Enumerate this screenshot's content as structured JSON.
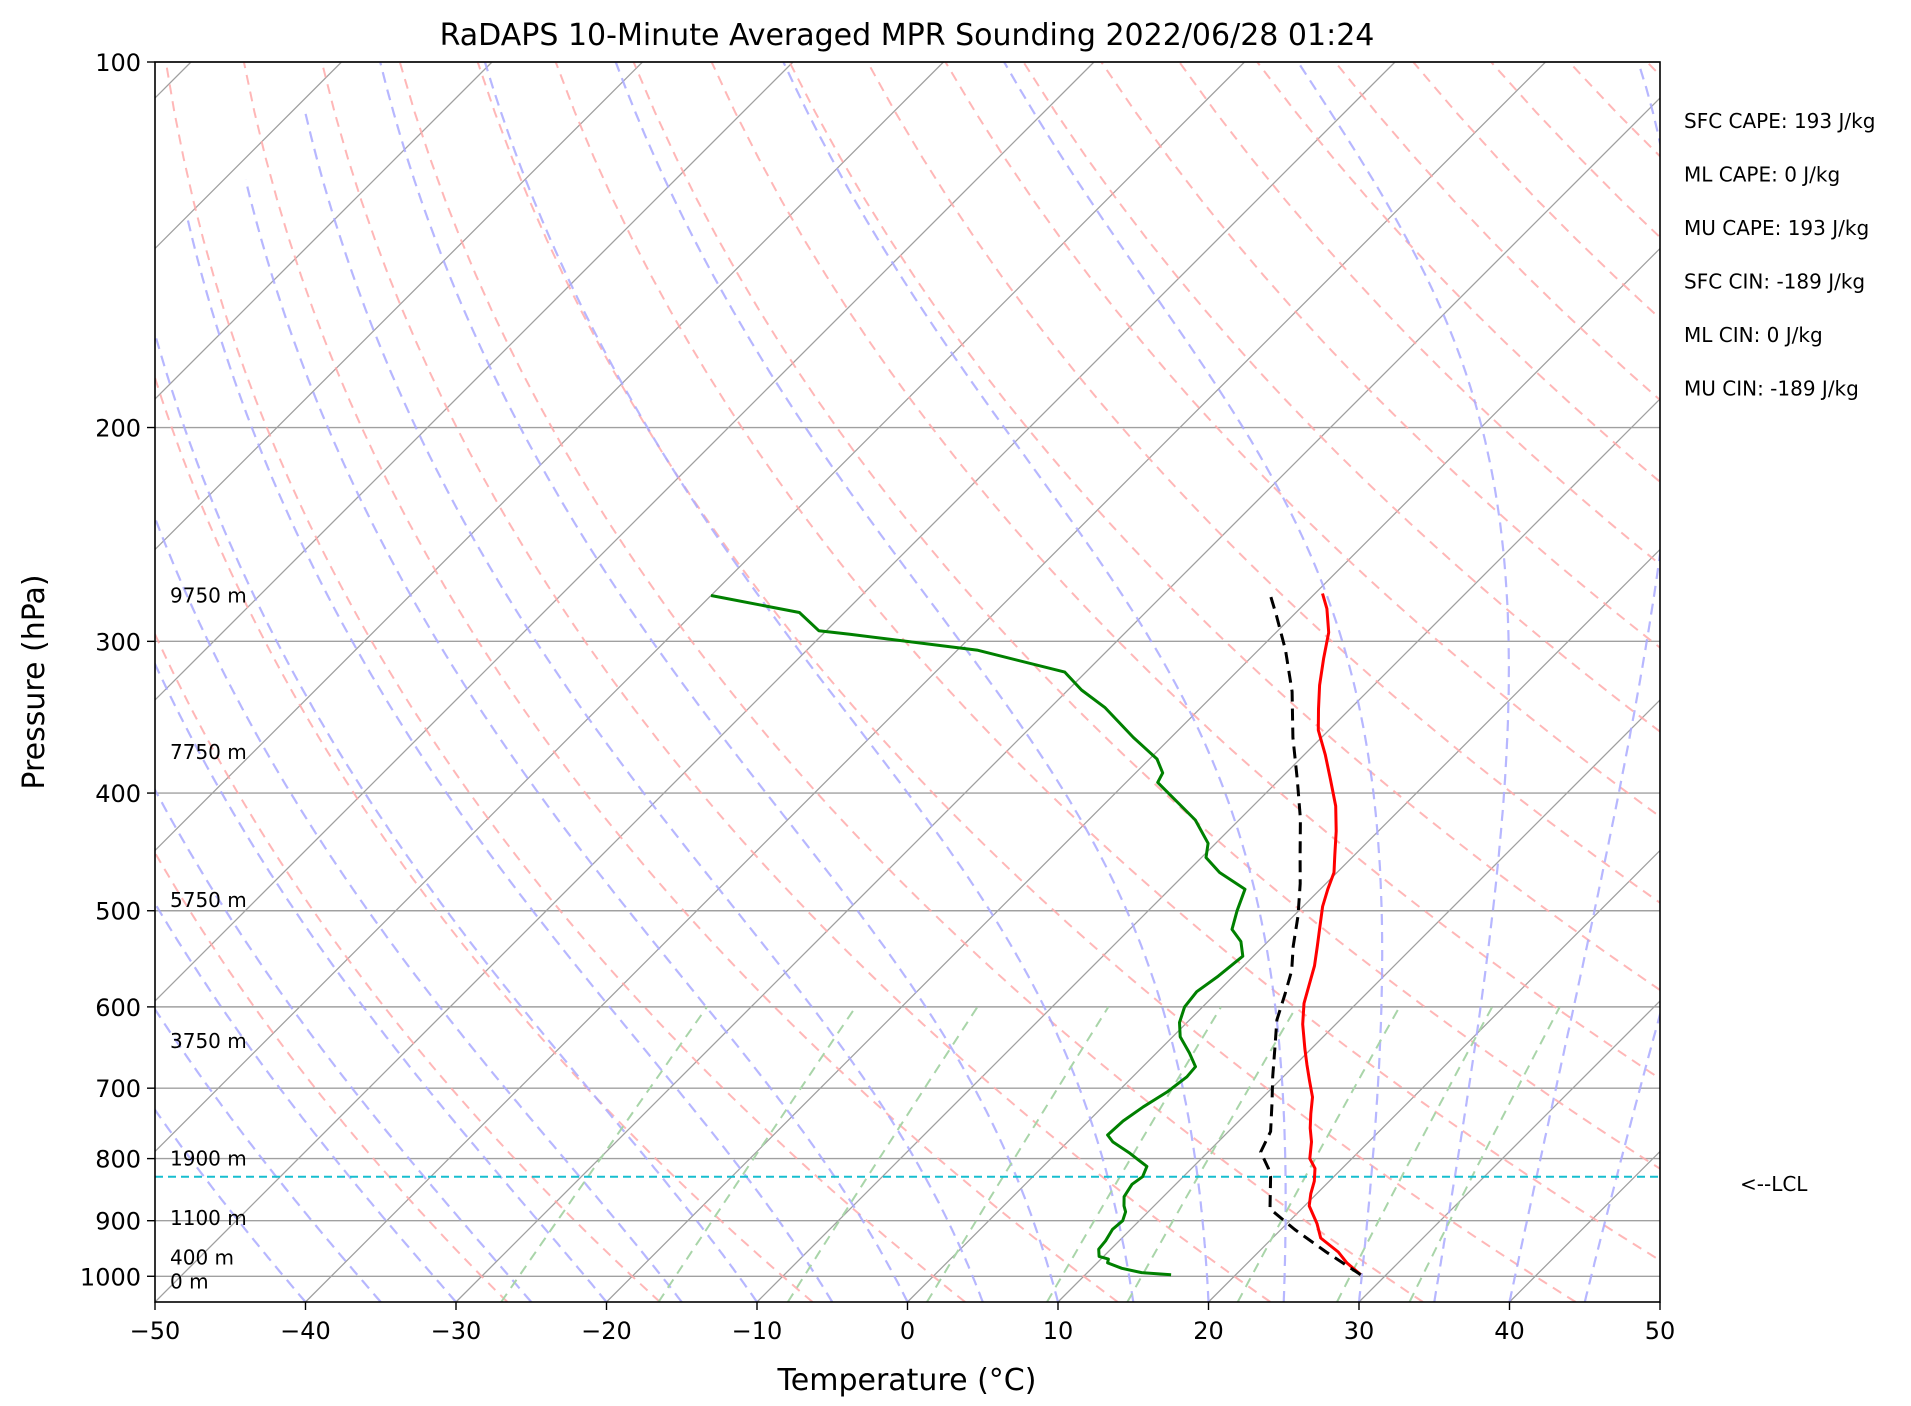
{
  "chart_data": {
    "type": "line",
    "subtype": "skew-T log-p sounding",
    "title": "RaDAPS 10-Minute Averaged MPR Sounding 2022/06/28 01:24",
    "xlabel": "Temperature (°C)",
    "ylabel": "Pressure (hPa)",
    "xlim": [
      -50,
      50
    ],
    "ylim": [
      1050,
      100
    ],
    "yscale": "log",
    "x_ticks": [
      "−50",
      "−40",
      "−30",
      "−20",
      "−10",
      "0",
      "10",
      "20",
      "30",
      "40",
      "50"
    ],
    "y_ticks": [
      "100",
      "200",
      "300",
      "400",
      "500",
      "600",
      "700",
      "800",
      "900",
      "1000"
    ],
    "grid": true,
    "colors": {
      "temperature": "#ff0000",
      "dewpoint": "#008000",
      "parcel": "#000000",
      "lcl": "#17becf",
      "dry_adiabats": "#ffaaaa",
      "moist_adiabats": "#aaaaff",
      "mixing_ratio": "#a9d5a9",
      "isotherms": "#a0a0a0"
    },
    "series": [
      {
        "role": "temperature",
        "points": [
          [
            28.3,
            997
          ],
          [
            26.6,
            975
          ],
          [
            25.3,
            955
          ],
          [
            23.2,
            930
          ],
          [
            22.0,
            905
          ],
          [
            20.3,
            875
          ],
          [
            19.6,
            855
          ],
          [
            19.0,
            835
          ],
          [
            18.2,
            815
          ],
          [
            17.2,
            800
          ],
          [
            16.2,
            775
          ],
          [
            15.2,
            755
          ],
          [
            14.3,
            735
          ],
          [
            13.3,
            712
          ],
          [
            12.0,
            690
          ],
          [
            10.8,
            670
          ],
          [
            9.6,
            650
          ],
          [
            7.8,
            620
          ],
          [
            6.5,
            596
          ],
          [
            5.6,
            575
          ],
          [
            4.7,
            555
          ],
          [
            3.6,
            535
          ],
          [
            2.5,
            516
          ],
          [
            1.3,
            496
          ],
          [
            0.5,
            480
          ],
          [
            -0.2,
            465
          ],
          [
            -1.3,
            450
          ],
          [
            -2.8,
            430
          ],
          [
            -4.5,
            410
          ],
          [
            -6.6,
            390
          ],
          [
            -8.6,
            372
          ],
          [
            -10.7,
            355
          ],
          [
            -12.1,
            341
          ],
          [
            -13.6,
            326
          ],
          [
            -15.1,
            310
          ],
          [
            -16.5,
            295
          ],
          [
            -18.2,
            282
          ],
          [
            -19.5,
            274
          ]
        ]
      },
      {
        "role": "dewpoint",
        "points": [
          [
            15.7,
            997
          ],
          [
            13.6,
            993
          ],
          [
            12.0,
            985
          ],
          [
            10.7,
            975
          ],
          [
            10.5,
            968
          ],
          [
            9.7,
            963
          ],
          [
            9.2,
            950
          ],
          [
            9.1,
            935
          ],
          [
            8.8,
            915
          ],
          [
            8.9,
            900
          ],
          [
            8.5,
            885
          ],
          [
            8.0,
            875
          ],
          [
            7.4,
            860
          ],
          [
            7.1,
            840
          ],
          [
            7.3,
            828
          ],
          [
            6.9,
            812
          ],
          [
            5.9,
            802
          ],
          [
            4.9,
            792
          ],
          [
            3.0,
            775
          ],
          [
            2.2,
            765
          ],
          [
            2.3,
            745
          ],
          [
            2.7,
            725
          ],
          [
            3.3,
            705
          ],
          [
            3.6,
            685
          ],
          [
            3.5,
            672
          ],
          [
            2.2,
            655
          ],
          [
            0.5,
            635
          ],
          [
            -0.5,
            618
          ],
          [
            -1.2,
            600
          ],
          [
            -1.4,
            583
          ],
          [
            -1.0,
            566
          ],
          [
            -0.7,
            545
          ],
          [
            -1.8,
            530
          ],
          [
            -3.2,
            518
          ],
          [
            -4.1,
            500
          ],
          [
            -5.0,
            480
          ],
          [
            -7.8,
            465
          ],
          [
            -9.7,
            452
          ],
          [
            -10.5,
            440
          ],
          [
            -12.9,
            421
          ],
          [
            -17.9,
            392
          ],
          [
            -18.2,
            385
          ],
          [
            -19.5,
            375
          ],
          [
            -22.5,
            360
          ],
          [
            -26.4,
            340
          ],
          [
            -29.1,
            329
          ],
          [
            -31.4,
            318
          ],
          [
            -38.7,
            305
          ],
          [
            -48.2,
            296
          ],
          [
            -50.5,
            294
          ],
          [
            -53.0,
            284
          ],
          [
            -60.0,
            275
          ]
        ]
      },
      {
        "role": "parcel",
        "points": [
          [
            28.3,
            997
          ],
          [
            24.5,
            955
          ],
          [
            20.9,
            915
          ],
          [
            17.9,
            880
          ],
          [
            15.8,
            828
          ],
          [
            15.1,
            815
          ],
          [
            13.5,
            790
          ],
          [
            12.8,
            760
          ],
          [
            11.0,
            720
          ],
          [
            9.3,
            685
          ],
          [
            7.6,
            650
          ],
          [
            5.8,
            615
          ],
          [
            4.6,
            585
          ],
          [
            3.5,
            560
          ],
          [
            2.0,
            535
          ],
          [
            0.3,
            505
          ],
          [
            -1.7,
            475
          ],
          [
            -3.6,
            450
          ],
          [
            -6.0,
            420
          ],
          [
            -8.8,
            390
          ],
          [
            -11.9,
            360
          ],
          [
            -15.0,
            330
          ],
          [
            -18.2,
            305
          ],
          [
            -21.2,
            285
          ],
          [
            -23.0,
            274
          ]
        ]
      }
    ],
    "lcl_pressure": 828,
    "lcl_label": "<--LCL",
    "height_labels": [
      "9750 m",
      "7750 m",
      "5750 m",
      "3750 m",
      "1900 m",
      "1100 m",
      "400 m",
      "0 m"
    ],
    "height_pressures": [
      275,
      370,
      490,
      640,
      800,
      895,
      965,
      1010
    ],
    "indices": [
      "SFC CAPE: 193 J/kg",
      "ML CAPE: 0 J/kg",
      "MU CAPE: 193 J/kg",
      "SFC CIN: -189 J/kg",
      "ML CIN: 0 J/kg",
      "MU CIN: -189 J/kg"
    ]
  }
}
